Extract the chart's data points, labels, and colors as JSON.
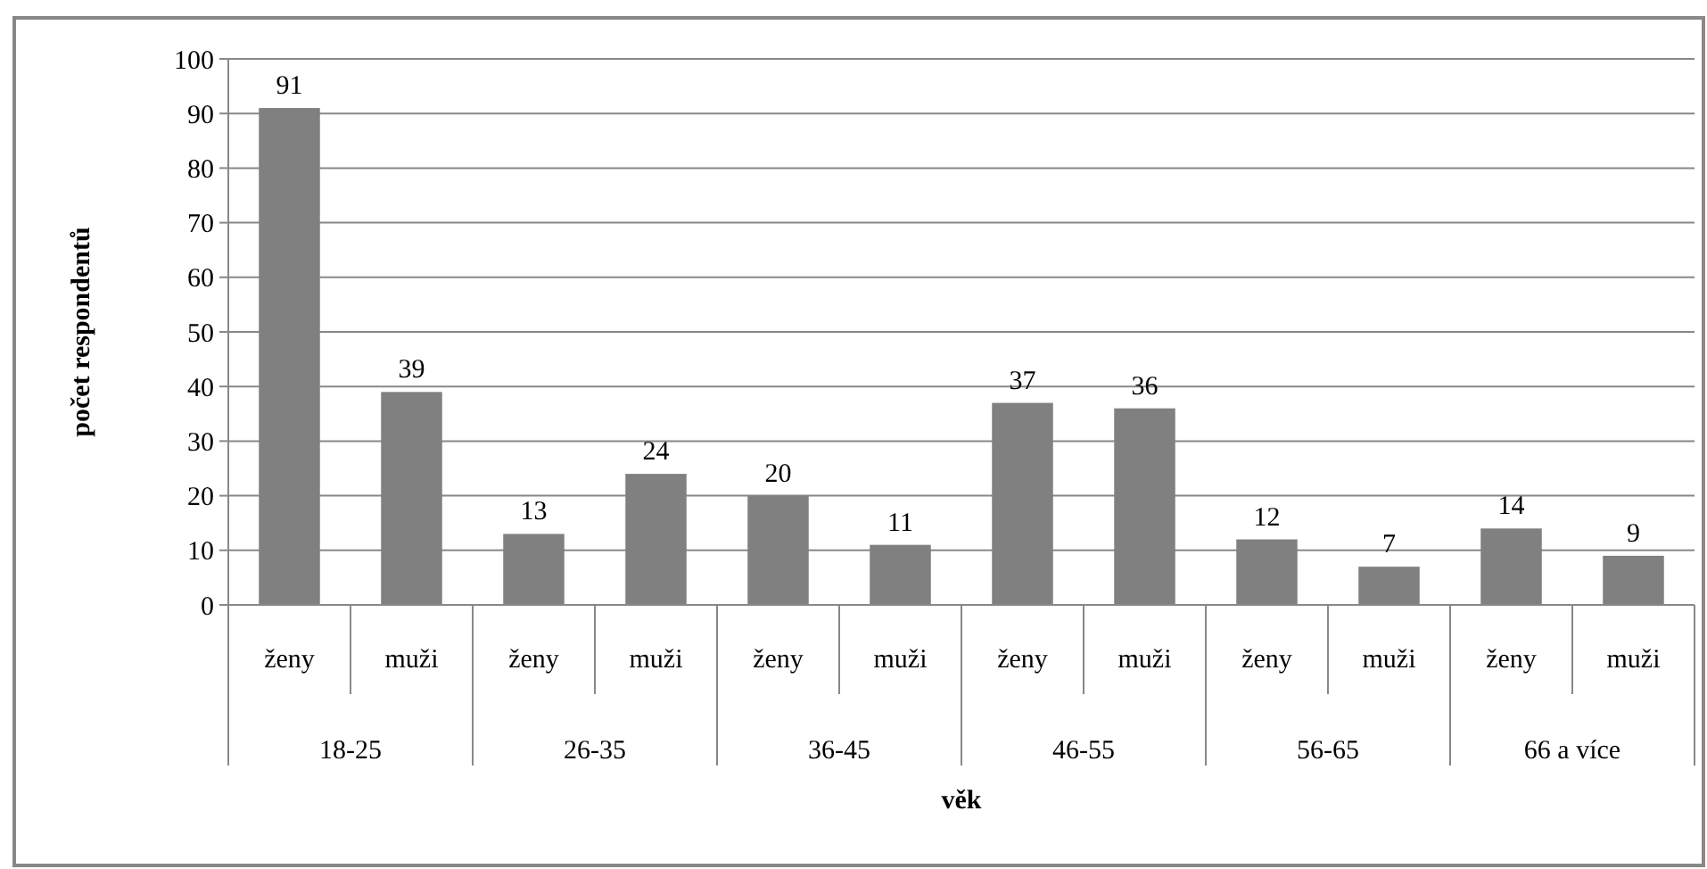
{
  "chart_data": {
    "type": "bar",
    "ylabel": "počet respondentů",
    "xlabel": "věk",
    "categories": [
      "ženy",
      "muži",
      "ženy",
      "muži",
      "ženy",
      "muži",
      "ženy",
      "muži",
      "ženy",
      "muži",
      "ženy",
      "muži"
    ],
    "values": [
      91,
      39,
      13,
      24,
      20,
      11,
      37,
      36,
      12,
      7,
      14,
      9
    ],
    "color": "#808080",
    "data_labels": true,
    "grid": "y",
    "ylim": [
      0,
      100
    ],
    "yticks": [
      0,
      10,
      20,
      30,
      40,
      50,
      60,
      70,
      80,
      90,
      100
    ],
    "annotations": [
      "18-25",
      "26-35",
      "36-45",
      "46-55",
      "56-65",
      "66 a více"
    ]
  }
}
